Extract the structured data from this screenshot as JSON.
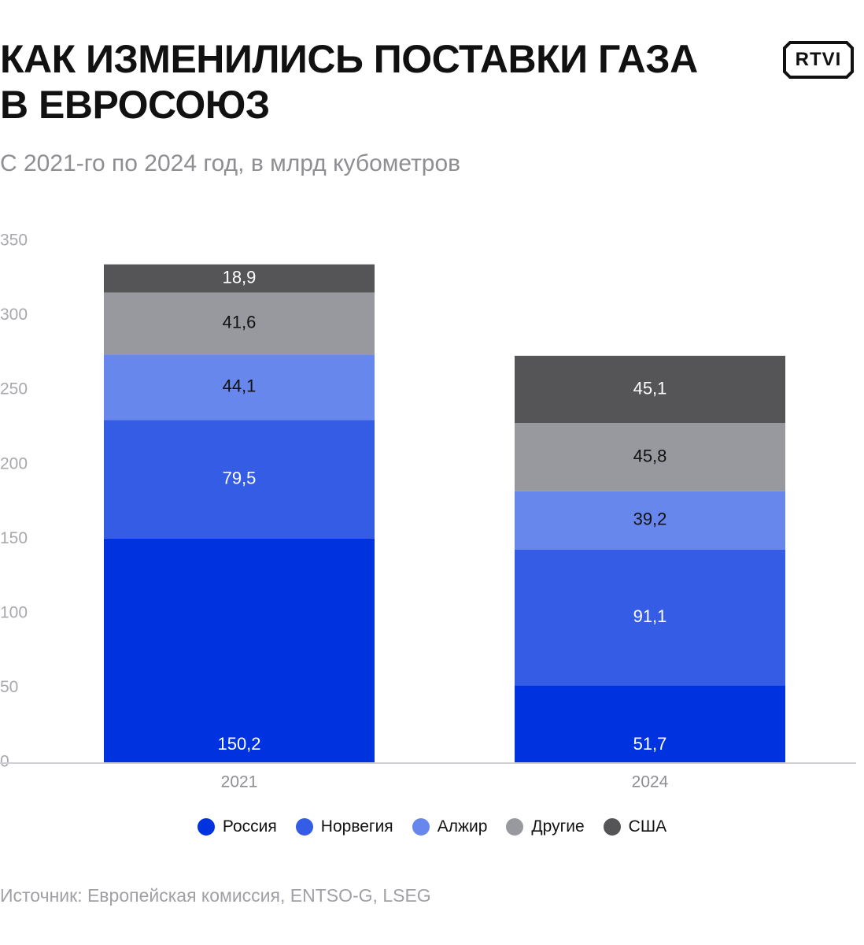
{
  "header": {
    "title": "КАК ИЗМЕНИЛИСЬ ПОСТАВКИ ГАЗА В ЕВРОСОЮЗ",
    "subtitle": "С 2021-го по 2024 год, в млрд кубометров"
  },
  "logo": {
    "text": "RTVI"
  },
  "source": "Источник: Европейская комиссия, ENTSO-G, LSEG",
  "chart_data": {
    "type": "bar",
    "stacked": true,
    "categories": [
      "2021",
      "2024"
    ],
    "ylim": [
      0,
      350
    ],
    "yticks": [
      "0",
      "50",
      "100",
      "150",
      "200",
      "250",
      "300",
      "350"
    ],
    "grid": false,
    "legend_position": "bottom",
    "series": [
      {
        "name": "Россия",
        "values": [
          150.2,
          51.7
        ],
        "labels": [
          "150,2",
          "51,7"
        ],
        "color": "#0033e0",
        "label_color": "#ffffff"
      },
      {
        "name": "Норвегия",
        "values": [
          79.5,
          91.1
        ],
        "labels": [
          "79,5",
          "91,1"
        ],
        "color": "#345ce5",
        "label_color": "#ffffff"
      },
      {
        "name": "Алжир",
        "values": [
          44.1,
          39.2
        ],
        "labels": [
          "44,1",
          "39,2"
        ],
        "color": "#6787ec",
        "label_color": "#111111"
      },
      {
        "name": "Другие",
        "values": [
          41.6,
          45.8
        ],
        "labels": [
          "41,6",
          "45,8"
        ],
        "color": "#98999e",
        "label_color": "#111111"
      },
      {
        "name": "США",
        "values": [
          18.9,
          45.1
        ],
        "labels": [
          "18,9",
          "45,1"
        ],
        "color": "#555558",
        "label_color": "#ffffff"
      }
    ]
  }
}
